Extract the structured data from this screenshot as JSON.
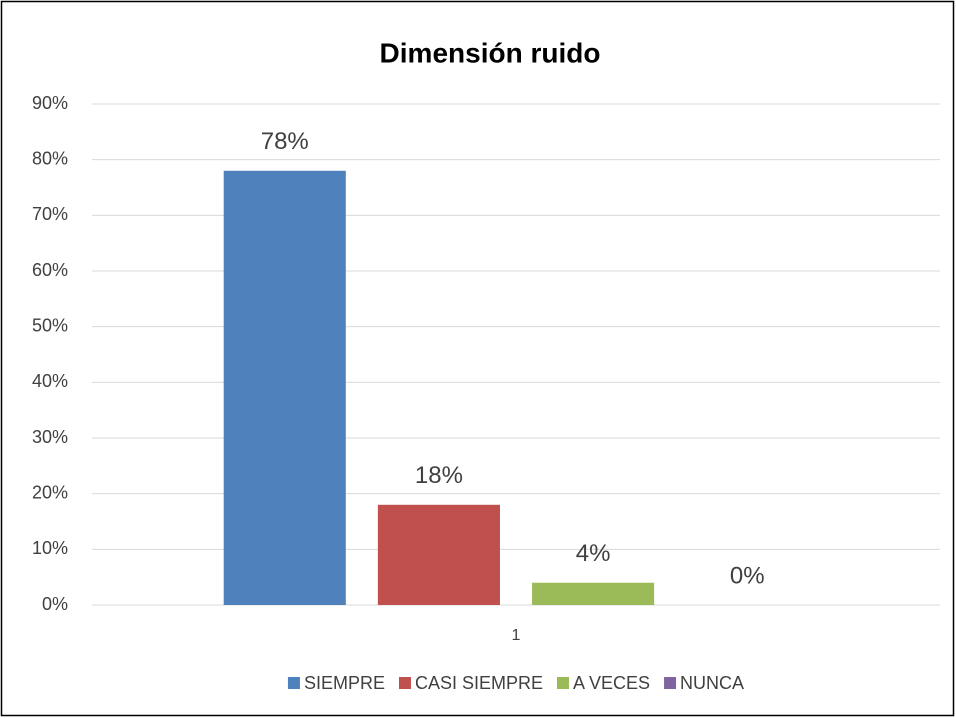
{
  "chart_data": {
    "type": "bar",
    "title": "Dimensión ruido",
    "categories": [
      "1"
    ],
    "series": [
      {
        "name": "SIEMPRE",
        "color": "#4f81bd",
        "values": [
          78
        ],
        "value_labels": [
          "78%"
        ]
      },
      {
        "name": "CASI SIEMPRE",
        "color": "#c0504d",
        "values": [
          18
        ],
        "value_labels": [
          "18%"
        ]
      },
      {
        "name": "A VECES",
        "color": "#9bbb59",
        "values": [
          4
        ],
        "value_labels": [
          "4%"
        ]
      },
      {
        "name": "NUNCA",
        "color": "#8064a2",
        "values": [
          0
        ],
        "value_labels": [
          "0%"
        ]
      }
    ],
    "ylim": [
      0,
      90
    ],
    "yticks": [
      {
        "value": 0,
        "label": "0%"
      },
      {
        "value": 10,
        "label": "10%"
      },
      {
        "value": 20,
        "label": "20%"
      },
      {
        "value": 30,
        "label": "30%"
      },
      {
        "value": 40,
        "label": "40%"
      },
      {
        "value": 50,
        "label": "50%"
      },
      {
        "value": 60,
        "label": "60%"
      },
      {
        "value": 70,
        "label": "70%"
      },
      {
        "value": 80,
        "label": "80%"
      },
      {
        "value": 90,
        "label": "90%"
      }
    ],
    "grid": true,
    "legend": "bottom"
  }
}
